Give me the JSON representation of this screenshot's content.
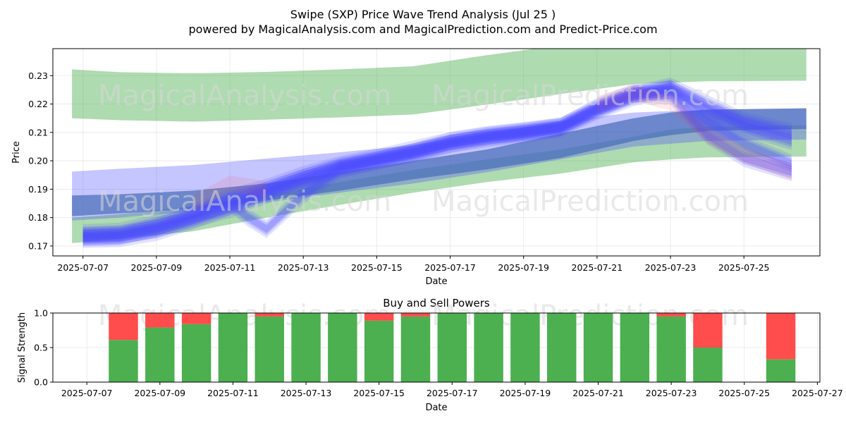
{
  "title_line1": "Swipe (SXP) Price Wave Trend Analysis (Jul 25 )",
  "title_line2": "powered by MagicalAnalysis.com and MagicalPrediction.com and Predict-Price.com",
  "watermarks": [
    "MagicalAnalysis.com",
    "MagicalPrediction.com"
  ],
  "colors": {
    "green_band": "#4caf50",
    "blue_band": "#4a4aff",
    "steel_band": "#4a6fb8",
    "red_band": "#ff4c4c",
    "buy": "#4caf50",
    "sell": "#ff4c4c"
  },
  "chart_data": [
    {
      "type": "area",
      "xlabel": "Date",
      "ylabel": "Price",
      "ylim": [
        0.1665,
        0.2395
      ],
      "x_ticks": [
        "2025-07-07",
        "2025-07-09",
        "2025-07-11",
        "2025-07-13",
        "2025-07-15",
        "2025-07-17",
        "2025-07-19",
        "2025-07-21",
        "2025-07-23",
        "2025-07-25"
      ],
      "y_ticks": [
        "0.17",
        "0.18",
        "0.19",
        "0.20",
        "0.21",
        "0.22",
        "0.23"
      ],
      "y_tick_values": [
        0.17,
        0.18,
        0.19,
        0.2,
        0.21,
        0.22,
        0.23
      ],
      "grid": true,
      "bands": [
        {
          "color": "green",
          "opacity": 0.45,
          "x": [
            "2025-07-06.7",
            "2025-07-08",
            "2025-07-10",
            "2025-07-12",
            "2025-07-14",
            "2025-07-16",
            "2025-07-18",
            "2025-07-20",
            "2025-07-22",
            "2025-07-24",
            "2025-07-26.7"
          ],
          "upper": [
            0.2322,
            0.2312,
            0.2308,
            0.2313,
            0.2322,
            0.2333,
            0.2372,
            0.2407,
            0.2445,
            0.247,
            0.2492
          ],
          "lower": [
            0.215,
            0.2143,
            0.2138,
            0.2145,
            0.2153,
            0.2163,
            0.2198,
            0.2235,
            0.227,
            0.228,
            0.2282
          ]
        },
        {
          "color": "green",
          "opacity": 0.45,
          "x": [
            "2025-07-06.7",
            "2025-07-08",
            "2025-07-10",
            "2025-07-12",
            "2025-07-14",
            "2025-07-16",
            "2025-07-18",
            "2025-07-20",
            "2025-07-22",
            "2025-07-23",
            "2025-07-24",
            "2025-07-26.7"
          ],
          "upper": [
            0.18,
            0.1812,
            0.184,
            0.1878,
            0.1925,
            0.1968,
            0.2005,
            0.204,
            0.2085,
            0.211,
            0.212,
            0.2125
          ],
          "lower": [
            0.171,
            0.1725,
            0.1752,
            0.18,
            0.1845,
            0.1888,
            0.1925,
            0.1955,
            0.1995,
            0.2005,
            0.2012,
            0.2015
          ]
        },
        {
          "color": "blue",
          "opacity": 0.32,
          "x": [
            "2025-07-06.7",
            "2025-07-08",
            "2025-07-10",
            "2025-07-12",
            "2025-07-14",
            "2025-07-16",
            "2025-07-18",
            "2025-07-20",
            "2025-07-22",
            "2025-07-24",
            "2025-07-26.7"
          ],
          "upper": [
            0.1962,
            0.1972,
            0.1985,
            0.2008,
            0.203,
            0.2055,
            0.2095,
            0.214,
            0.217,
            0.218,
            0.2185
          ],
          "lower": [
            0.179,
            0.18,
            0.1822,
            0.1853,
            0.1888,
            0.192,
            0.196,
            0.2005,
            0.205,
            0.207,
            0.2075
          ]
        },
        {
          "color": "steel",
          "opacity": 0.72,
          "x": [
            "2025-07-06.7",
            "2025-07-08",
            "2025-07-10",
            "2025-07-12",
            "2025-07-14",
            "2025-07-16",
            "2025-07-18",
            "2025-07-20",
            "2025-07-22",
            "2025-07-23",
            "2025-07-24",
            "2025-07-26.7"
          ],
          "upper": [
            0.1878,
            0.1882,
            0.1895,
            0.192,
            0.196,
            0.2,
            0.204,
            0.2095,
            0.215,
            0.217,
            0.218,
            0.2185
          ],
          "lower": [
            0.1805,
            0.1815,
            0.183,
            0.186,
            0.1895,
            0.1935,
            0.197,
            0.201,
            0.207,
            0.209,
            0.2105,
            0.2112
          ]
        }
      ],
      "wave_paths": [
        {
          "x": [
            "2025-07-07",
            "2025-07-08",
            "2025-07-09",
            "2025-07-10",
            "2025-07-11",
            "2025-07-12",
            "2025-07-13",
            "2025-07-14",
            "2025-07-15",
            "2025-07-16",
            "2025-07-17",
            "2025-07-18",
            "2025-07-19",
            "2025-07-20",
            "2025-07-21",
            "2025-07-22",
            "2025-07-23",
            "2025-07-24",
            "2025-07-25",
            "2025-07-26.3"
          ],
          "mid": [
            0.1735,
            0.174,
            0.176,
            0.1795,
            0.183,
            0.188,
            0.193,
            0.1975,
            0.2,
            0.2025,
            0.206,
            0.208,
            0.2095,
            0.2115,
            0.2175,
            0.2225,
            0.2255,
            0.218,
            0.212,
            0.207
          ]
        },
        {
          "x": [
            "2025-07-07",
            "2025-07-08",
            "2025-07-09",
            "2025-07-10",
            "2025-07-11",
            "2025-07-12",
            "2025-07-13",
            "2025-07-14",
            "2025-07-15",
            "2025-07-16",
            "2025-07-17",
            "2025-07-18",
            "2025-07-19",
            "2025-07-20",
            "2025-07-21",
            "2025-07-22",
            "2025-07-23",
            "2025-07-24",
            "2025-07-25",
            "2025-07-26.3"
          ],
          "mid": [
            0.1745,
            0.175,
            0.178,
            0.1815,
            0.187,
            0.1905,
            0.195,
            0.1985,
            0.201,
            0.204,
            0.207,
            0.209,
            0.2105,
            0.212,
            0.2185,
            0.2235,
            0.225,
            0.214,
            0.206,
            0.199
          ]
        },
        {
          "x": [
            "2025-07-07",
            "2025-07-08",
            "2025-07-09",
            "2025-07-10",
            "2025-07-11",
            "2025-07-11.5",
            "2025-07-12",
            "2025-07-13",
            "2025-07-14",
            "2025-07-15",
            "2025-07-16",
            "2025-07-17",
            "2025-07-18",
            "2025-07-19",
            "2025-07-20",
            "2025-07-21",
            "2025-07-22",
            "2025-07-23",
            "2025-07-24",
            "2025-07-25",
            "2025-07-26.3"
          ],
          "mid": [
            0.173,
            0.1735,
            0.1765,
            0.181,
            0.185,
            0.18,
            0.176,
            0.188,
            0.197,
            0.2,
            0.203,
            0.206,
            0.2085,
            0.21,
            0.212,
            0.219,
            0.224,
            0.223,
            0.209,
            0.201,
            0.196
          ]
        },
        {
          "x": [
            "2025-07-07",
            "2025-07-08",
            "2025-07-09",
            "2025-07-10",
            "2025-07-11",
            "2025-07-12",
            "2025-07-13",
            "2025-07-14",
            "2025-07-15",
            "2025-07-16",
            "2025-07-17",
            "2025-07-18",
            "2025-07-19",
            "2025-07-20",
            "2025-07-21",
            "2025-07-22",
            "2025-07-23",
            "2025-07-24",
            "2025-07-25",
            "2025-07-26.3"
          ],
          "mid": [
            0.1725,
            0.1728,
            0.175,
            0.179,
            0.184,
            0.1895,
            0.194,
            0.198,
            0.2005,
            0.203,
            0.2068,
            0.2088,
            0.2102,
            0.2118,
            0.218,
            0.2232,
            0.2262,
            0.22,
            0.214,
            0.21
          ]
        }
      ],
      "red_paths": [
        {
          "x": [
            "2025-07-21",
            "2025-07-22",
            "2025-07-23",
            "2025-07-24",
            "2025-07-25",
            "2025-07-26.3"
          ],
          "mid": [
            0.22,
            0.224,
            0.2205,
            0.209,
            0.202,
            0.196
          ]
        },
        {
          "x": [
            "2025-07-10",
            "2025-07-11",
            "2025-07-12"
          ],
          "mid": [
            0.185,
            0.192,
            0.19
          ]
        }
      ]
    },
    {
      "type": "bar",
      "title": "Buy and Sell Powers",
      "xlabel": "Date",
      "ylabel": "Signal Strength",
      "ylim": [
        0,
        1.0
      ],
      "x_ticks": [
        "2025-07-07",
        "2025-07-09",
        "2025-07-11",
        "2025-07-13",
        "2025-07-15",
        "2025-07-17",
        "2025-07-19",
        "2025-07-21",
        "2025-07-23",
        "2025-07-25",
        "2025-07-27"
      ],
      "y_ticks": [
        "0.0",
        "0.5",
        "1.0"
      ],
      "y_tick_values": [
        0,
        0.5,
        1.0
      ],
      "categories": [
        "2025-07-08",
        "2025-07-09",
        "2025-07-10",
        "2025-07-11",
        "2025-07-12",
        "2025-07-13",
        "2025-07-14",
        "2025-07-15",
        "2025-07-16",
        "2025-07-17",
        "2025-07-18",
        "2025-07-19",
        "2025-07-20",
        "2025-07-21",
        "2025-07-22",
        "2025-07-23",
        "2025-07-24",
        "2025-07-26"
      ],
      "series": [
        {
          "name": "Buy",
          "values": [
            0.61,
            0.79,
            0.84,
            1.0,
            0.95,
            1.0,
            1.0,
            0.89,
            0.95,
            1.0,
            1.0,
            1.0,
            1.0,
            1.0,
            1.0,
            0.95,
            0.5,
            0.33
          ]
        },
        {
          "name": "Sell",
          "values": [
            0.39,
            0.21,
            0.16,
            0.0,
            0.05,
            0.0,
            0.0,
            0.11,
            0.05,
            0.0,
            0.0,
            0.0,
            0.0,
            0.0,
            0.0,
            0.05,
            0.5,
            0.67
          ]
        }
      ]
    }
  ]
}
